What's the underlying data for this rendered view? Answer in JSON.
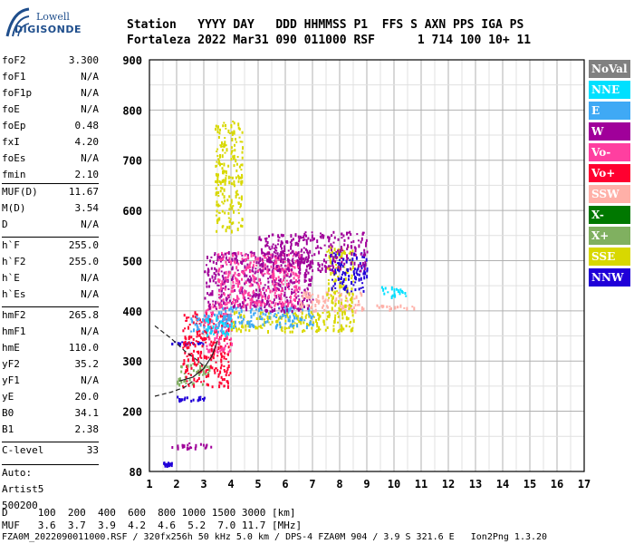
{
  "logo": {
    "line1": "Lowell",
    "line2": "DIGISONDE"
  },
  "header": {
    "line1": "Station   YYYY DAY   DDD HHMMSS P1  FFS S AXN PPS IGA PS",
    "line2": "Fortaleza 2022 Mar31 090 011000 RSF      1 714 100 10+ 11"
  },
  "parameters": [
    {
      "name": "foF2",
      "value": "3.300"
    },
    {
      "name": "foF1",
      "value": "N/A"
    },
    {
      "name": "foF1p",
      "value": "N/A"
    },
    {
      "name": "foE",
      "value": "N/A"
    },
    {
      "name": "foEp",
      "value": "0.48"
    },
    {
      "name": "fxI",
      "value": "4.20"
    },
    {
      "name": "foEs",
      "value": "N/A"
    },
    {
      "name": "fmin",
      "value": "2.10"
    },
    {
      "name": "MUF(D)",
      "value": "11.67"
    },
    {
      "name": "M(D)",
      "value": "3.54"
    },
    {
      "name": "D",
      "value": "N/A"
    },
    {
      "name": "h`F",
      "value": "255.0"
    },
    {
      "name": "h`F2",
      "value": "255.0"
    },
    {
      "name": "h`E",
      "value": "N/A"
    },
    {
      "name": "h`Es",
      "value": "N/A"
    },
    {
      "name": "hmF2",
      "value": "265.8"
    },
    {
      "name": "hmF1",
      "value": "N/A"
    },
    {
      "name": "hmE",
      "value": "110.0"
    },
    {
      "name": "yF2",
      "value": "35.2"
    },
    {
      "name": "yF1",
      "value": "N/A"
    },
    {
      "name": "yE",
      "value": "20.0"
    },
    {
      "name": "B0",
      "value": "34.1"
    },
    {
      "name": "B1",
      "value": "2.38"
    },
    {
      "name": "C-level",
      "value": "33"
    },
    {
      "name": "Auto:",
      "value": ""
    },
    {
      "name": "Artist5",
      "value": ""
    },
    {
      "name": "500200",
      "value": ""
    }
  ],
  "footer": {
    "d_row": "D     100  200  400  600  800 1000 1500 3000 [km]",
    "muf_row": "MUF   3.6  3.7  3.9  4.2  4.6  5.2  7.0 11.7 [MHz]",
    "file_info": "FZA0M_2022090011000.RSF / 320fx256h 50 kHz 5.0 km / DPS-4 FZA0M 904 / 3.9 S 321.6 E   Ion2Png 1.3.20"
  },
  "legend": [
    {
      "label": "NoVal",
      "color": "#808080"
    },
    {
      "label": "NNE",
      "color": "#00e0ff"
    },
    {
      "label": "E",
      "color": "#3fa9f5"
    },
    {
      "label": "W",
      "color": "#a0009a"
    },
    {
      "label": "Vo-",
      "color": "#ff3fa0"
    },
    {
      "label": "Vo+",
      "color": "#ff0030"
    },
    {
      "label": "SSW",
      "color": "#ffb0a8"
    },
    {
      "label": "X-",
      "color": "#007800"
    },
    {
      "label": "X+",
      "color": "#80b060"
    },
    {
      "label": "SSE",
      "color": "#d8d800"
    },
    {
      "label": "NNW",
      "color": "#2000d8"
    }
  ],
  "chart_data": {
    "type": "scatter",
    "xlim": [
      1,
      17
    ],
    "ylim": [
      80,
      900
    ],
    "x_ticks": [
      "1",
      "2",
      "3",
      "4",
      "5",
      "6",
      "7",
      "8",
      "9",
      "10",
      "11",
      "12",
      "13",
      "14",
      "15",
      "16",
      "17"
    ],
    "y_ticks": [
      "80",
      "200",
      "300",
      "400",
      "500",
      "600",
      "700",
      "800",
      "900"
    ],
    "grid": true,
    "legend_position": "right",
    "clusters": [
      {
        "series": "NNW",
        "x": [
          1.8,
          3.0
        ],
        "y": [
          222,
          232
        ]
      },
      {
        "series": "NNW",
        "x": [
          1.8,
          3.0
        ],
        "y": [
          335,
          340
        ]
      },
      {
        "series": "W",
        "x": [
          1.8,
          3.6
        ],
        "y": [
          128,
          138
        ]
      },
      {
        "series": "NNW",
        "x": [
          1.4,
          1.8
        ],
        "y": [
          94,
          100
        ]
      },
      {
        "series": "X+",
        "x": [
          2.0,
          3.2
        ],
        "y": [
          255,
          300
        ]
      },
      {
        "series": "Vo+",
        "x": [
          2.2,
          4.0
        ],
        "y": [
          250,
          400
        ]
      },
      {
        "series": "Vo-",
        "x": [
          3.0,
          4.0
        ],
        "y": [
          320,
          420
        ]
      },
      {
        "series": "E",
        "x": [
          2.5,
          4.2
        ],
        "y": [
          360,
          395
        ]
      },
      {
        "series": "NNE",
        "x": [
          3.0,
          4.0
        ],
        "y": [
          355,
          390
        ]
      },
      {
        "series": "SSE",
        "x": [
          4.0,
          7.6
        ],
        "y": [
          360,
          400
        ]
      },
      {
        "series": "E",
        "x": [
          3.5,
          7.0
        ],
        "y": [
          370,
          410
        ]
      },
      {
        "series": "W",
        "x": [
          3.0,
          7.0
        ],
        "y": [
          400,
          520
        ]
      },
      {
        "series": "Vo-",
        "x": [
          3.5,
          6.5
        ],
        "y": [
          410,
          520
        ]
      },
      {
        "series": "SSW",
        "x": [
          6.5,
          8.8
        ],
        "y": [
          400,
          440
        ]
      },
      {
        "series": "SSW",
        "x": [
          8.0,
          11.0
        ],
        "y": [
          405,
          415
        ]
      },
      {
        "series": "SSE",
        "x": [
          3.4,
          4.4
        ],
        "y": [
          560,
          780
        ]
      },
      {
        "series": "SSE",
        "x": [
          7.5,
          8.5
        ],
        "y": [
          360,
          530
        ]
      },
      {
        "series": "NNW",
        "x": [
          7.6,
          9.0
        ],
        "y": [
          440,
          520
        ]
      },
      {
        "series": "W",
        "x": [
          5.0,
          9.0
        ],
        "y": [
          480,
          560
        ]
      },
      {
        "series": "NNE",
        "x": [
          9.5,
          10.6
        ],
        "y": [
          430,
          450
        ]
      }
    ],
    "curves": [
      {
        "style": "dashed",
        "points": [
          [
            1.2,
            370
          ],
          [
            1.8,
            345
          ],
          [
            2.3,
            320
          ],
          [
            2.8,
            300
          ],
          [
            3.0,
            290
          ]
        ]
      },
      {
        "style": "dashed",
        "points": [
          [
            1.2,
            230
          ],
          [
            1.8,
            238
          ],
          [
            2.3,
            248
          ],
          [
            2.6,
            260
          ]
        ]
      },
      {
        "style": "solid",
        "points": [
          [
            2.1,
            260
          ],
          [
            2.6,
            268
          ],
          [
            3.0,
            285
          ],
          [
            3.3,
            310
          ],
          [
            3.5,
            340
          ]
        ]
      }
    ]
  }
}
